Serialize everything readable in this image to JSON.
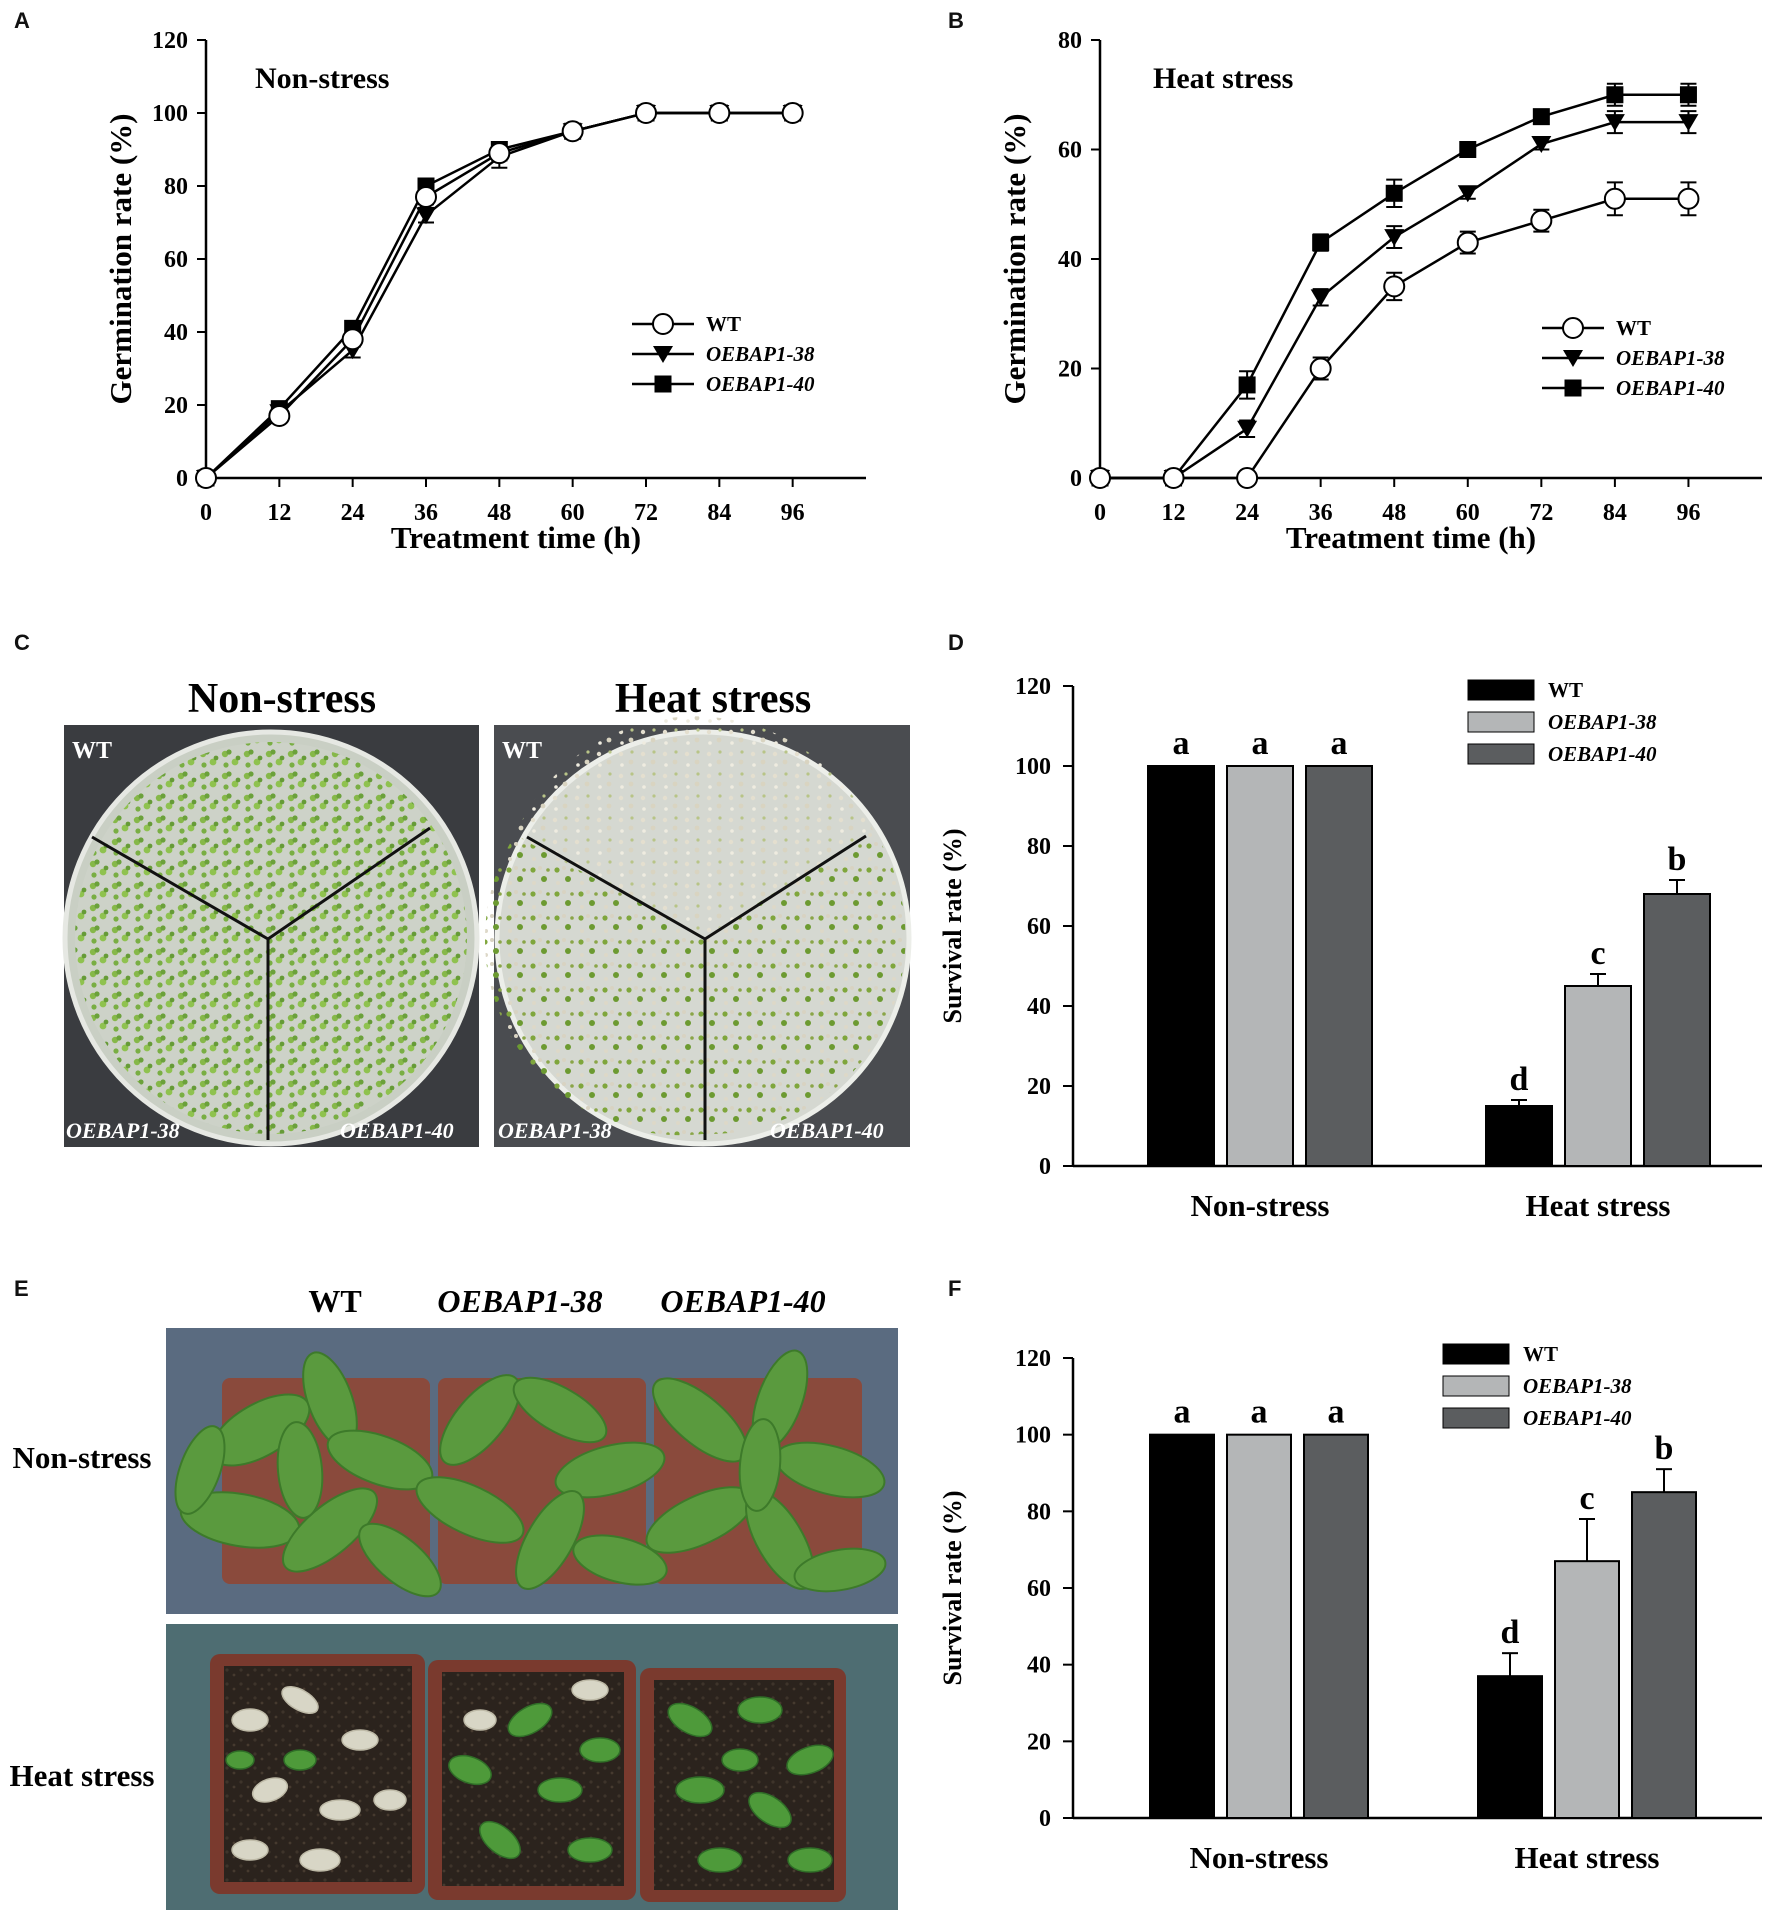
{
  "panel_labels": {
    "a": "A",
    "b": "B",
    "c": "C",
    "d": "D",
    "e": "E",
    "f": "F"
  },
  "legend": {
    "wt": "WT",
    "oe38": "OEBAP1-38",
    "oe40": "OEBAP1-40"
  },
  "colors": {
    "wt_bar": "#000000",
    "oe38_bar": "#b4b6b7",
    "oe40_bar": "#5b5d5f",
    "plate_bg": "#3d3f44",
    "green": "#6fa534",
    "pot": "#7a3a2e",
    "photo_bg_top": "#5c6f84",
    "photo_bg_bottom": "#4f6e74"
  },
  "photo_c": {
    "title_left": "Non-stress",
    "title_right": "Heat stress",
    "wt": "WT",
    "oe38": "OEBAP1-38",
    "oe40": "OEBAP1-40"
  },
  "photo_e": {
    "col_wt": "WT",
    "col_oe38": "OEBAP1-38",
    "col_oe40": "OEBAP1-40",
    "row_top": "Non-stress",
    "row_bottom": "Heat stress"
  },
  "chart_data": [
    {
      "panel": "A",
      "type": "line",
      "title": "Non-stress",
      "xlabel": "Treatment time (h)",
      "ylabel": "Germination rate (%)",
      "x": [
        0,
        12,
        24,
        36,
        48,
        60,
        72,
        84,
        96
      ],
      "xlim": [
        0,
        108
      ],
      "ylim": [
        0,
        120
      ],
      "xticks": [
        "0",
        "12",
        "24",
        "36",
        "48",
        "60",
        "72",
        "84",
        "96"
      ],
      "yticks": [
        "0",
        "20",
        "40",
        "60",
        "80",
        "100",
        "120"
      ],
      "series": [
        {
          "name": "WT",
          "marker": "circle",
          "values": [
            0,
            17,
            38,
            77,
            89,
            95,
            100,
            100,
            100
          ],
          "err": [
            0,
            1,
            2,
            2,
            2,
            1,
            0,
            0,
            0
          ]
        },
        {
          "name": "OEBAP1-38",
          "marker": "triangle",
          "values": [
            0,
            18,
            35,
            72,
            88,
            95,
            100,
            100,
            100
          ],
          "err": [
            0,
            1,
            2,
            2,
            3,
            1,
            0,
            0,
            0
          ]
        },
        {
          "name": "OEBAP1-40",
          "marker": "square",
          "values": [
            0,
            19,
            41,
            80,
            90,
            95,
            100,
            100,
            100
          ],
          "err": [
            0,
            1,
            2,
            2,
            2,
            1,
            0,
            0,
            0
          ]
        }
      ],
      "legend_position": "right"
    },
    {
      "panel": "B",
      "type": "line",
      "title": "Heat stress",
      "xlabel": "Treatment time (h)",
      "ylabel": "Germination rate (%)",
      "x": [
        0,
        12,
        24,
        36,
        48,
        60,
        72,
        84,
        96
      ],
      "xlim": [
        0,
        108
      ],
      "ylim": [
        0,
        80
      ],
      "xticks": [
        "0",
        "12",
        "24",
        "36",
        "48",
        "60",
        "72",
        "84",
        "96"
      ],
      "yticks": [
        "0",
        "20",
        "40",
        "60",
        "80"
      ],
      "series": [
        {
          "name": "WT",
          "marker": "circle",
          "values": [
            0,
            0,
            0,
            20,
            35,
            43,
            47,
            51,
            51
          ],
          "err": [
            0,
            0,
            0,
            2,
            2.5,
            2,
            2,
            3,
            3
          ]
        },
        {
          "name": "OEBAP1-38",
          "marker": "triangle",
          "values": [
            0,
            0,
            9,
            33,
            44,
            52,
            61,
            65,
            65
          ],
          "err": [
            0,
            0,
            1.5,
            1.5,
            2,
            1,
            1,
            2,
            2
          ]
        },
        {
          "name": "OEBAP1-40",
          "marker": "square",
          "values": [
            0,
            0,
            17,
            43,
            52,
            60,
            66,
            70,
            70
          ],
          "err": [
            0,
            0,
            2.5,
            1.5,
            2.5,
            1,
            1,
            2,
            2
          ]
        }
      ],
      "legend_position": "right"
    },
    {
      "panel": "D",
      "type": "bar",
      "ylabel": "Survival rate (%)",
      "categories": [
        "Non-stress",
        "Heat stress"
      ],
      "ylim": [
        0,
        120
      ],
      "yticks": [
        "0",
        "20",
        "40",
        "60",
        "80",
        "100",
        "120"
      ],
      "series": [
        {
          "name": "WT",
          "values": [
            100,
            15
          ],
          "err": [
            0,
            1.5
          ],
          "letters": [
            "a",
            "d"
          ]
        },
        {
          "name": "OEBAP1-38",
          "values": [
            100,
            45
          ],
          "err": [
            0,
            3
          ],
          "letters": [
            "a",
            "c"
          ]
        },
        {
          "name": "OEBAP1-40",
          "values": [
            100,
            68
          ],
          "err": [
            0,
            3.5
          ],
          "letters": [
            "a",
            "b"
          ]
        }
      ],
      "legend_position": "top-right"
    },
    {
      "panel": "F",
      "type": "bar",
      "ylabel": "Survival rate (%)",
      "categories": [
        "Non-stress",
        "Heat stress"
      ],
      "ylim": [
        0,
        120
      ],
      "yticks": [
        "0",
        "20",
        "40",
        "60",
        "80",
        "100",
        "120"
      ],
      "series": [
        {
          "name": "WT",
          "values": [
            100,
            37
          ],
          "err": [
            0,
            6
          ],
          "letters": [
            "a",
            "d"
          ]
        },
        {
          "name": "OEBAP1-38",
          "values": [
            100,
            67
          ],
          "err": [
            0,
            11
          ],
          "letters": [
            "a",
            "c"
          ]
        },
        {
          "name": "OEBAP1-40",
          "values": [
            100,
            85
          ],
          "err": [
            0,
            6
          ],
          "letters": [
            "a",
            "b"
          ]
        }
      ],
      "legend_position": "top-right"
    }
  ]
}
